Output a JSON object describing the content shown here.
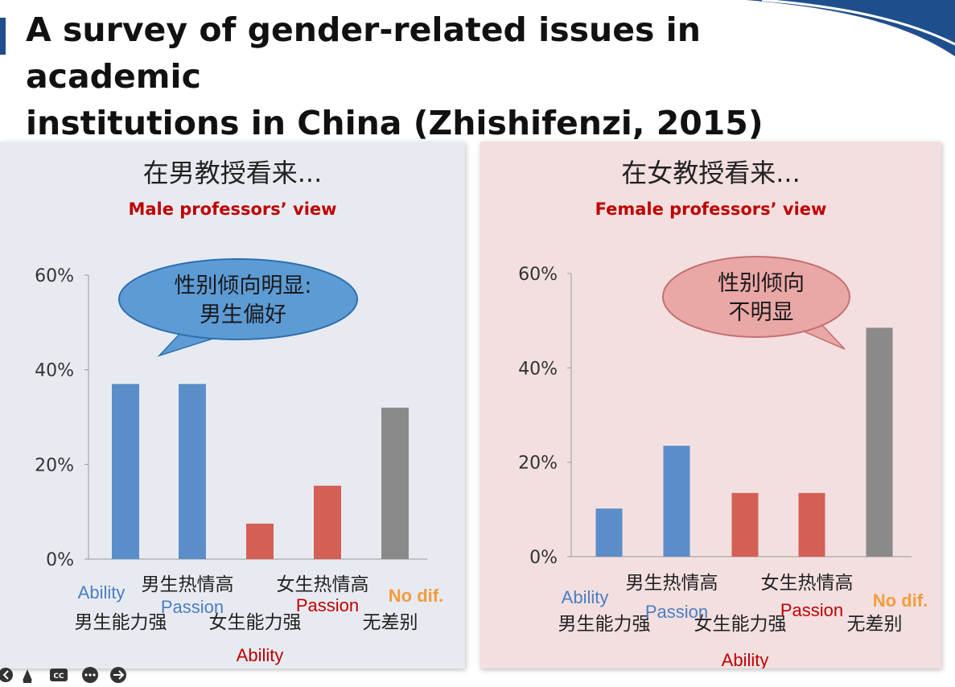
{
  "slide": {
    "title_line1": "A survey of gender-related issues in academic",
    "title_line2": "institutions in China (Zhishifenzi, 2015)"
  },
  "colors": {
    "ability_male": "#5b8ec9",
    "passion_male": "#5b8ec9",
    "ability_female": "#d35f55",
    "no_diff": "#8a8a8a",
    "label_blue": "#4b7ec0",
    "label_red": "#c00000",
    "label_orange": "#f39c3c"
  },
  "chart_data": [
    {
      "type": "bar",
      "id": "male",
      "title": "在男教授看来...",
      "subtitle": "Male professors’ view",
      "categories": [
        "男生能力强",
        "男生热情高",
        "女生能力强",
        "女生热情高",
        "无差别"
      ],
      "english_labels": [
        "Ability",
        "Passion",
        "Ability",
        "Passion",
        "No dif."
      ],
      "values": [
        37,
        37,
        7.5,
        15.5,
        32
      ],
      "ylim": [
        0,
        60
      ],
      "yticks": [
        "0%",
        "20%",
        "40%",
        "60%"
      ],
      "callout": [
        "性别倾向明显:",
        "男生偏好"
      ]
    },
    {
      "type": "bar",
      "id": "female",
      "title": "在女教授看来...",
      "subtitle": "Female professors’ view",
      "categories": [
        "男生能力强",
        "男生热情高",
        "女生能力强",
        "女生热情高",
        "无差别"
      ],
      "english_labels": [
        "Ability",
        "Passion",
        "Ability",
        "Passion",
        "No dif."
      ],
      "values": [
        10.2,
        23.5,
        13.5,
        13.5,
        48.5
      ],
      "ylim": [
        0,
        60
      ],
      "yticks": [
        "0%",
        "20%",
        "40%",
        "60%"
      ],
      "callout": [
        "性别倾向",
        "不明显"
      ]
    }
  ],
  "player": {
    "icons": [
      "previous-icon",
      "pointer-icon",
      "captions-icon",
      "more-icon",
      "next-icon"
    ],
    "cc_label": "CC"
  }
}
